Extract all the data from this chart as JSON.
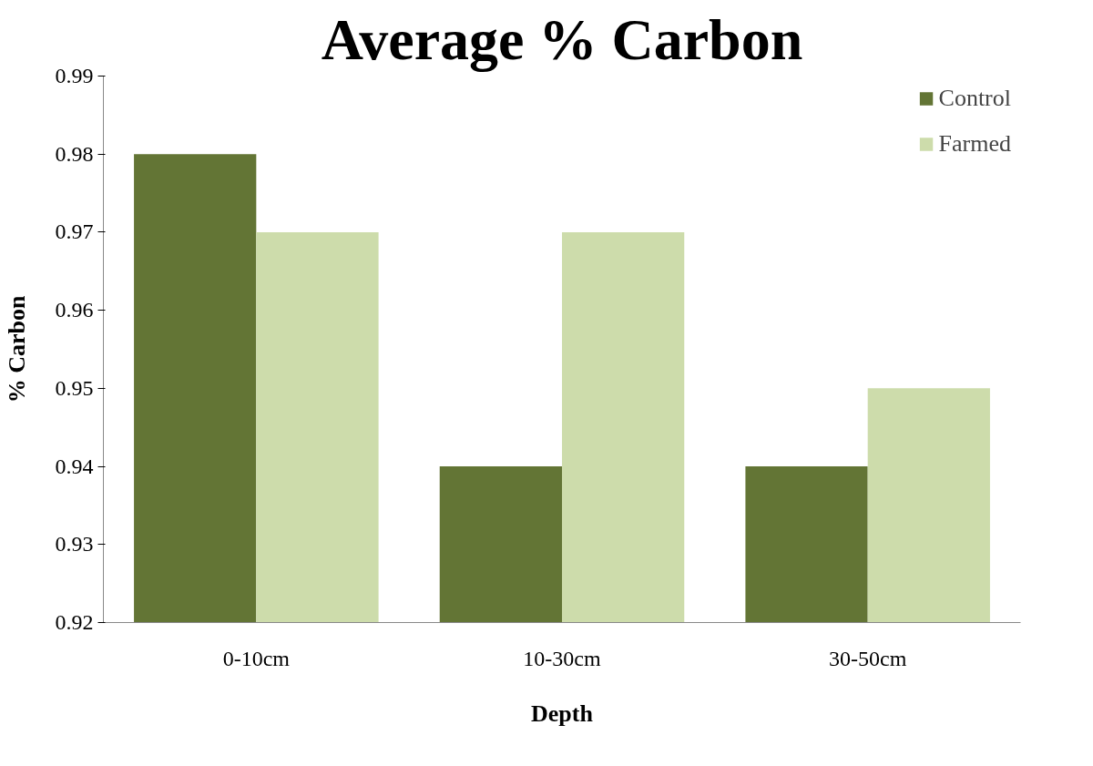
{
  "chart_data": {
    "type": "bar",
    "title": "Average % Carbon",
    "xlabel": "Depth",
    "ylabel": "% Carbon",
    "categories": [
      "0-10cm",
      "10-30cm",
      "30-50cm"
    ],
    "series": [
      {
        "name": "Control",
        "color": "#637535",
        "values": [
          0.98,
          0.94,
          0.94
        ]
      },
      {
        "name": "Farmed",
        "color": "#cddcab",
        "values": [
          0.97,
          0.97,
          0.95
        ]
      }
    ],
    "ylim": [
      0.92,
      0.99
    ],
    "yticks": [
      0.92,
      0.93,
      0.94,
      0.95,
      0.96,
      0.97,
      0.98,
      0.99
    ],
    "grid": false,
    "legend": "top right"
  }
}
